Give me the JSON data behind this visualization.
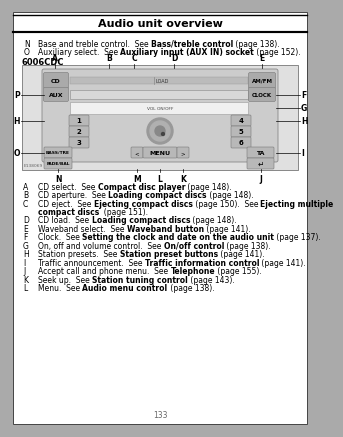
{
  "title": "Audio unit overview",
  "page_number": "133",
  "header_lines": [
    {
      "label": "N",
      "text": "Base and treble control.  See ",
      "bold": "Bass/treble control",
      "end": " (page 138)."
    },
    {
      "label": "O",
      "text": "Auxiliary select.  See ",
      "bold": "Auxiliary input (AUX IN) socket",
      "end": " (page 152)."
    }
  ],
  "model_label": "6006CDC",
  "body_lines": [
    {
      "label": "A",
      "text": "CD select.  See ",
      "bold": "Compact disc player",
      "end": " (page 148)."
    },
    {
      "label": "B",
      "text": "CD aperture.  See ",
      "bold": "Loading compact discs",
      "end": " (page 148)."
    },
    {
      "label": "C",
      "text": "CD eject.  See ",
      "bold": "Ejecting compact discs",
      "end": " (page 150).  See ",
      "bold2": "Ejecting multiple",
      "end2": "",
      "line2bold": "compact discs",
      "line2end": "  (page 151)."
    },
    {
      "label": "D",
      "text": "CD load.  See ",
      "bold": "Loading compact discs",
      "end": " (page 148)."
    },
    {
      "label": "E",
      "text": "Waveband select.  See ",
      "bold": "Waveband button",
      "end": " (page 141)."
    },
    {
      "label": "F",
      "text": "Clock.  See ",
      "bold": "Setting the clock and date on the audio unit",
      "end": " (page 137)."
    },
    {
      "label": "G",
      "text": "On, off and volume control.  See ",
      "bold": "On/off control",
      "end": " (page 138)."
    },
    {
      "label": "H",
      "text": "Station presets.  See ",
      "bold": "Station preset buttons",
      "end": " (page 141)."
    },
    {
      "label": "I",
      "text": "Traffic announcement.  See ",
      "bold": "Traffic information control",
      "end": " (page 141)."
    },
    {
      "label": "J",
      "text": "Accept call and phone menu.  See ",
      "bold": "Telephone",
      "end": " (page 155)."
    },
    {
      "label": "K",
      "text": "Seek up.  See ",
      "bold": "Station tuning control",
      "end": " (page 143)."
    },
    {
      "label": "L",
      "text": "Menu.  See ",
      "bold": "Audio menu control",
      "end": " (page 138)."
    }
  ]
}
